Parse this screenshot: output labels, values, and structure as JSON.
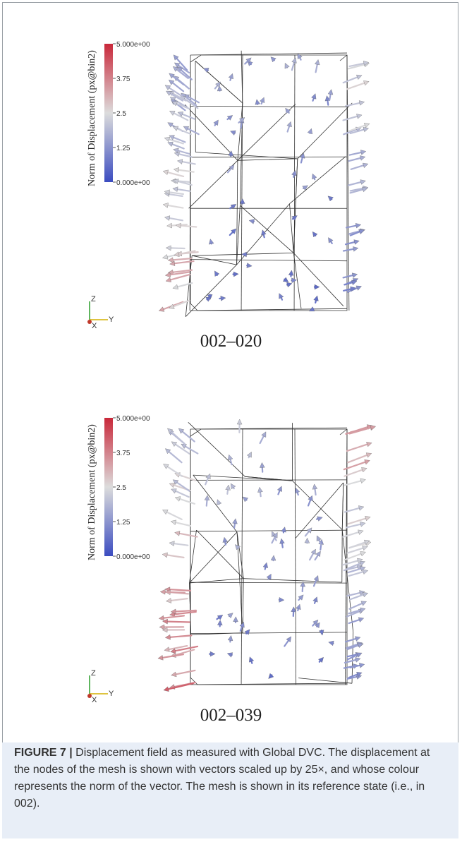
{
  "colorbar": {
    "title": "Norm of Displacement (px@bin2)",
    "ticks": [
      "5.000e+00",
      "3.75",
      "2.5",
      "1.25",
      "0.000e+00"
    ],
    "range": [
      0,
      5
    ],
    "colors": {
      "high": "#c9283a",
      "mid": "#dcdcdc",
      "low": "#3b4cc0"
    }
  },
  "axes_triad": {
    "z": "Z",
    "y": "Y",
    "x": "X"
  },
  "panels": [
    {
      "label": "002–020",
      "max_norm": 3.6,
      "seed": 17
    },
    {
      "label": "002–039",
      "max_norm": 4.4,
      "seed": 53
    }
  ],
  "caption": {
    "title": "FIGURE 7 |",
    "text": "Displacement field as measured with Global DVC. The displacement at the nodes of the mesh is shown with vectors scaled up by 25×, and whose colour represents the norm of the vector. The mesh is shown in its reference state (i.e., in 002)."
  }
}
